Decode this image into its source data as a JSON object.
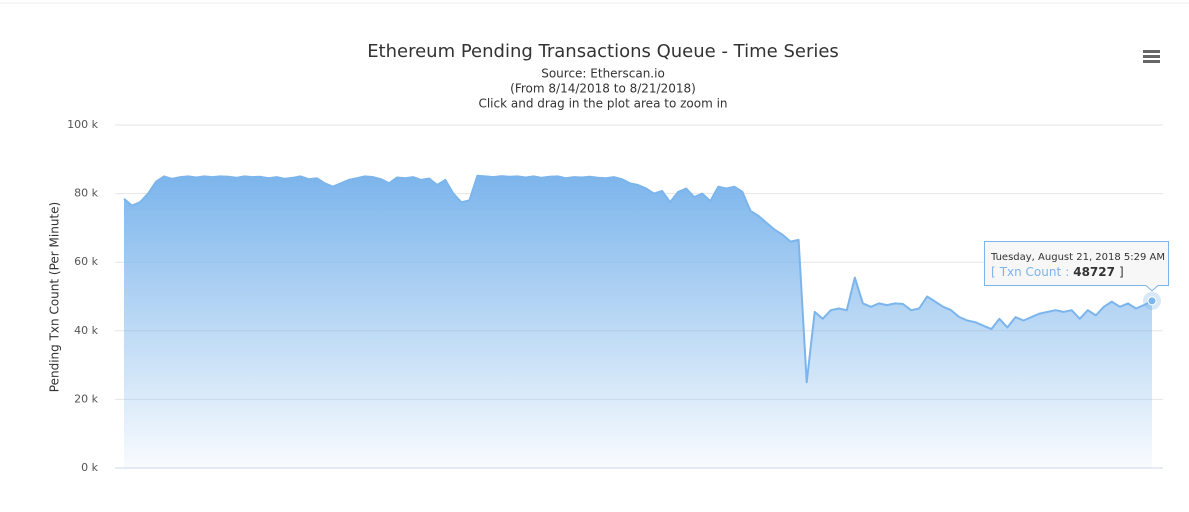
{
  "chart_data": {
    "type": "area",
    "title": "Ethereum Pending Transactions Queue - Time Series",
    "subtitle": [
      "Source: Etherscan.io",
      "(From 8/14/2018 to 8/21/2018)",
      "Click and drag in the plot area to zoom in"
    ],
    "y_label": "Pending Txn Count (Per Minute)",
    "color": "#7cb5ec",
    "values": [
      78500,
      76500,
      77500,
      80000,
      83500,
      85000,
      84300,
      84800,
      85000,
      84700,
      85000,
      84800,
      85000,
      84900,
      84600,
      85000,
      84800,
      84900,
      84500,
      84800,
      84300,
      84600,
      85000,
      84200,
      84500,
      83000,
      82000,
      83000,
      84000,
      84500,
      85000,
      84800,
      84200,
      83000,
      84700,
      84500,
      84800,
      84000,
      84400,
      82500,
      84000,
      80000,
      77500,
      78000,
      85200,
      85000,
      84800,
      85100,
      84900,
      85000,
      84700,
      85000,
      84600,
      84900,
      85000,
      84500,
      84800,
      84700,
      84900,
      84600,
      84500,
      84800,
      84200,
      83000,
      82500,
      81500,
      80000,
      80800,
      77500,
      80500,
      81500,
      79000,
      80000,
      77800,
      82000,
      81500,
      82000,
      80500,
      75000,
      73500,
      71500,
      69500,
      68000,
      66000,
      66500,
      25000,
      45500,
      43500,
      46000,
      46500,
      46000,
      55500,
      48000,
      47000,
      48000,
      47500,
      48000,
      47800,
      46000,
      46500,
      50000,
      48500,
      47000,
      46000,
      44000,
      43000,
      42500,
      41500,
      40500,
      43500,
      41000,
      44000,
      43000,
      44000,
      45000,
      45500,
      46000,
      45500,
      46000,
      43500,
      46000,
      44500,
      47000,
      48500,
      47000,
      48000,
      46500,
      47500,
      48727
    ],
    "ylim": [
      0,
      100000
    ],
    "yticks": [
      {
        "value": 0,
        "label": "0 k"
      },
      {
        "value": 20000,
        "label": "20 k"
      },
      {
        "value": 40000,
        "label": "40 k"
      },
      {
        "value": 60000,
        "label": "60 k"
      },
      {
        "value": 80000,
        "label": "80 k"
      },
      {
        "value": 100000,
        "label": "100 k"
      }
    ],
    "grid": true,
    "tooltip": {
      "header": "Tuesday, August 21, 2018 5:29 AM",
      "open": "[",
      "name": "Txn Count",
      "separator": ":",
      "value": 48727,
      "close": "]"
    }
  }
}
